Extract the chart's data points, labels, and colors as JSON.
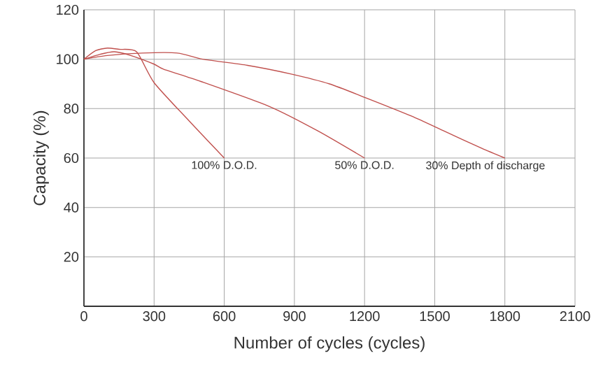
{
  "chart_data": {
    "type": "line",
    "xlabel": "Number of cycles (cycles)",
    "ylabel": "Capacity (%)",
    "xlim": [
      0,
      2100
    ],
    "ylim": [
      0,
      120
    ],
    "xticks": [
      0,
      300,
      600,
      900,
      1200,
      1500,
      1800,
      2100
    ],
    "yticks": [
      20,
      40,
      60,
      80,
      100,
      120
    ],
    "grid": true,
    "line_style": "solid",
    "marker": "none",
    "series": [
      {
        "color": "#c0504d",
        "x": [
          0,
          50,
          100,
          150,
          225,
          300,
          450,
          600
        ],
        "values": [
          100,
          103.5,
          104.5,
          104,
          103,
          90.5,
          75,
          60
        ]
      },
      {
        "color": "#c0504d",
        "x": [
          0,
          70,
          130,
          200,
          300,
          340,
          500,
          790,
          1000,
          1200
        ],
        "values": [
          100,
          102,
          103,
          101.5,
          98,
          96,
          91,
          81,
          71,
          60
        ]
      },
      {
        "color": "#c0504d",
        "x": [
          0,
          100,
          250,
          400,
          508,
          700,
          886,
          1050,
          1205,
          1400,
          1545,
          1700,
          1800
        ],
        "values": [
          100,
          101.5,
          102.5,
          102.5,
          100,
          97.5,
          94,
          90,
          84.4,
          77,
          70.7,
          64,
          60
        ]
      }
    ],
    "annotations": [
      {
        "text": "100% D.O.D.",
        "x": 600,
        "y": 60
      },
      {
        "text": "50% D.O.D.",
        "x": 1200,
        "y": 60
      },
      {
        "text": "30% Depth of discharge",
        "x": 1800,
        "y": 60
      }
    ]
  }
}
